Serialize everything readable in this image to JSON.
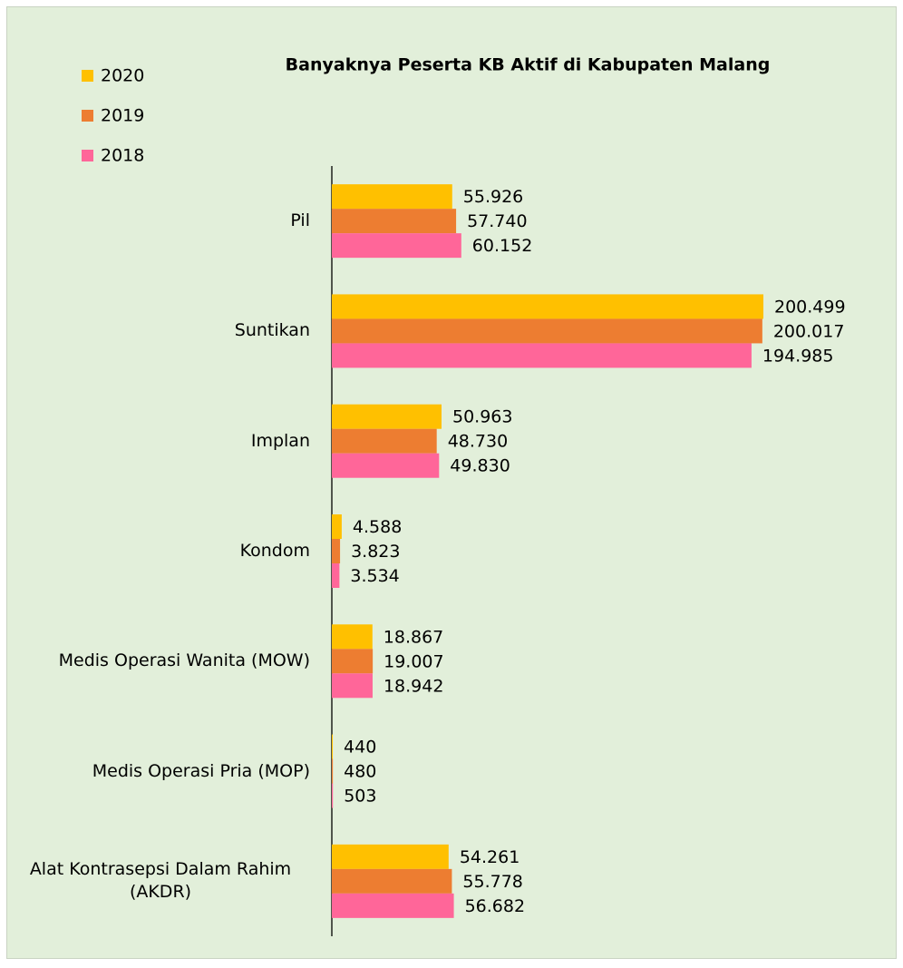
{
  "chart_data": {
    "type": "hbar",
    "title": "Banyaknya Peserta KB Aktif di Kabupaten Malang",
    "categories": [
      "Pil",
      "Suntikan",
      "Implan",
      "Kondom",
      "Medis Operasi Wanita (MOW)",
      "Medis Operasi Pria (MOP)",
      "Alat Kontrasepsi Dalam Rahim (AKDR)"
    ],
    "series": [
      {
        "name": "2020",
        "color": "#ffc000",
        "values": [
          55926,
          200499,
          50963,
          4588,
          18867,
          440,
          54261
        ],
        "value_labels": [
          "55.926",
          "200.499",
          "50.963",
          "4.588",
          "18.867",
          "440",
          "54.261"
        ]
      },
      {
        "name": "2019",
        "color": "#ed7d31",
        "values": [
          57740,
          200017,
          48730,
          3823,
          19007,
          480,
          55778
        ],
        "value_labels": [
          "57.740",
          "200.017",
          "48.730",
          "3.823",
          "19.007",
          "480",
          "55.778"
        ]
      },
      {
        "name": "2018",
        "color": "#ff6699",
        "values": [
          60152,
          194985,
          49830,
          3534,
          18942,
          503,
          56682
        ],
        "value_labels": [
          "60.152",
          "194.985",
          "49.830",
          "3.534",
          "18.942",
          "503",
          "56.682"
        ]
      }
    ],
    "legend": "top-left"
  }
}
